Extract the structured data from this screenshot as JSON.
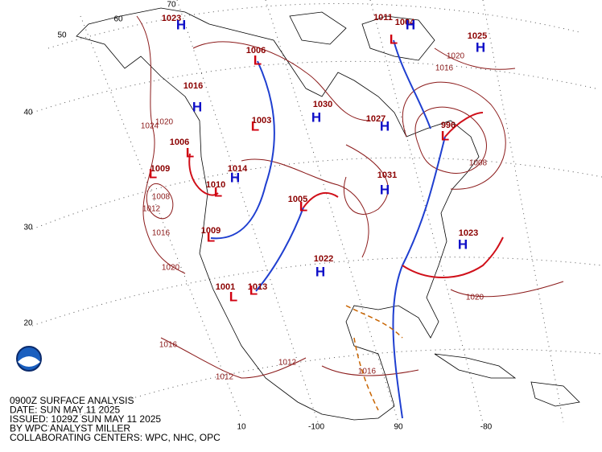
{
  "caption": [
    "0900Z SURFACE ANALYSIS",
    "DATE: SUN MAY 11 2025",
    "ISSUED: 1029Z SUN MAY 11 2025",
    "BY WPC ANALYST MILLER",
    "COLLABORATING CENTERS: WPC, NHC, OPC"
  ],
  "grid_labels": [
    "70",
    "60",
    "50",
    "40",
    "30",
    "20",
    "10",
    "-100",
    "90",
    "-80"
  ],
  "pressure_centers": [
    {
      "letter": "H",
      "pressure": 1023
    },
    {
      "letter": "L",
      "pressure": 1006
    },
    {
      "letter": "H",
      "pressure": 1016
    },
    {
      "letter": "L",
      "pressure": 1006
    },
    {
      "letter": "L",
      "pressure": 1009
    },
    {
      "letter": "L",
      "pressure": 1010
    },
    {
      "letter": "H",
      "pressure": 1014
    },
    {
      "letter": "L",
      "pressure": 1003
    },
    {
      "letter": "H",
      "pressure": 1030
    },
    {
      "letter": "H",
      "pressure": 1027
    },
    {
      "letter": "H",
      "pressure": 1031
    },
    {
      "letter": "L",
      "pressure": 1005
    },
    {
      "letter": "L",
      "pressure": 1009
    },
    {
      "letter": "H",
      "pressure": 1022
    },
    {
      "letter": "L",
      "pressure": 1001
    },
    {
      "letter": "L",
      "pressure": 1013
    },
    {
      "letter": "H",
      "pressure": 1023
    },
    {
      "letter": "H",
      "pressure": 1025
    },
    {
      "letter": "L",
      "pressure": 1011
    },
    {
      "letter": "H",
      "pressure": 1004
    },
    {
      "letter": "L",
      "pressure": 996
    }
  ],
  "isobar_labels": [
    1020,
    1024,
    1008,
    1012,
    1016,
    1020,
    1016,
    1012,
    1012,
    1016,
    1020,
    1016,
    1020,
    1008
  ]
}
